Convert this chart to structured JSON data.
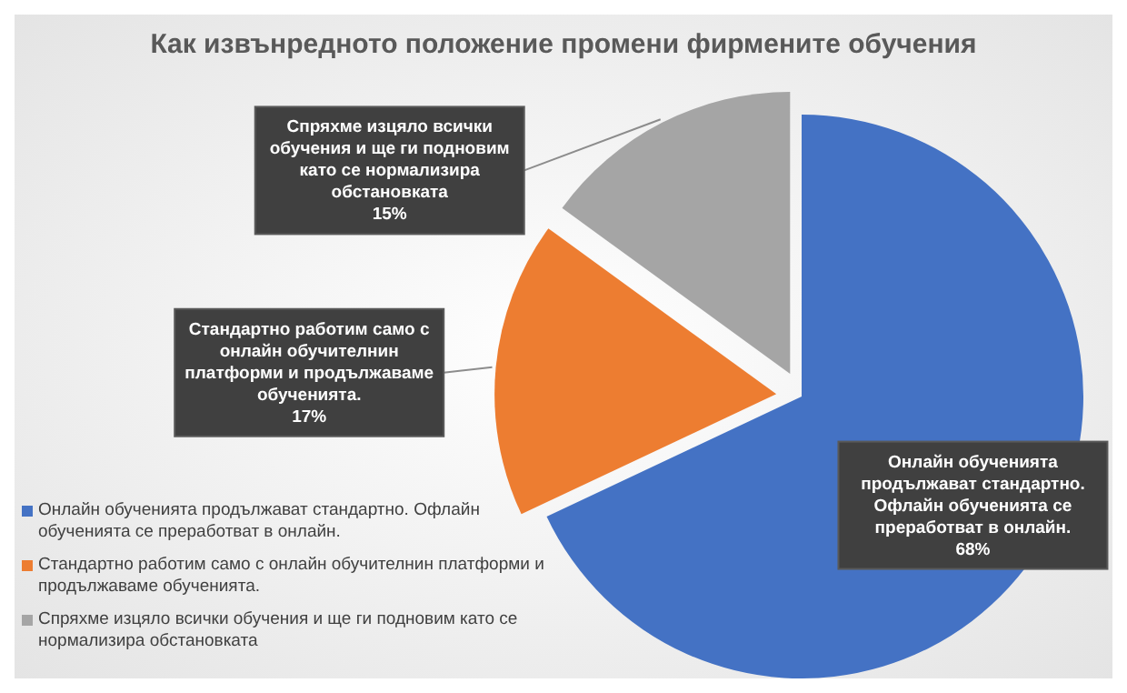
{
  "chart_data": {
    "type": "pie",
    "title": "Как извънредното положение промени фирмените обучения",
    "categories": [
      "Онлайн обученията продължават стандартно. Офлайн обученията се преработват в онлайн.",
      "Стандартно работим само с онлайн обучителнин платформи и продължаваме обученията.",
      "Спряхме изцяло всички обучения и ще ги подновим като се нормализира обстановката"
    ],
    "values": [
      68,
      17,
      15
    ],
    "value_labels": [
      "68%",
      "17%",
      "15%"
    ],
    "colors": [
      "#4472c4",
      "#ed7d31",
      "#a5a5a5"
    ],
    "legend": "bottom left"
  }
}
